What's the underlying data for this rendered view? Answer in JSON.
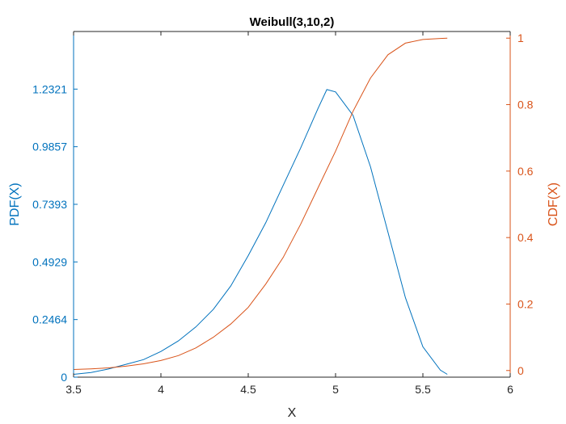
{
  "chart_data": {
    "type": "line",
    "title": "Weibull(3,10,2)",
    "xlabel": "X",
    "ylabel_left": "PDF(X)",
    "ylabel_right": "CDF(X)",
    "xlim": [
      3.5,
      6
    ],
    "ylim_left": [
      0,
      1.4785
    ],
    "ylim_right": [
      -0.02,
      1.02
    ],
    "x_ticks": [
      3.5,
      4,
      4.5,
      5,
      5.5,
      6
    ],
    "x_tick_labels": [
      "3.5",
      "4",
      "4.5",
      "5",
      "5.5",
      "6"
    ],
    "y_left_ticks": [
      0,
      0.2464,
      0.4929,
      0.7393,
      0.9857,
      1.2321
    ],
    "y_left_tick_labels": [
      "0",
      "0.2464",
      "0.4929",
      "0.7393",
      "0.9857",
      "1.2321"
    ],
    "y_right_ticks": [
      0,
      0.2,
      0.4,
      0.6,
      0.8,
      1
    ],
    "y_right_tick_labels": [
      "0",
      "0.2",
      "0.4",
      "0.6",
      "0.8",
      "1"
    ],
    "grid": false,
    "colors": {
      "left": "#0072BD",
      "right": "#D95319",
      "axis": "#262626"
    },
    "series": [
      {
        "axis": "left",
        "x": [
          3.5,
          3.6,
          3.7,
          3.8,
          3.9,
          4.0,
          4.1,
          4.2,
          4.3,
          4.4,
          4.5,
          4.6,
          4.7,
          4.8,
          4.9,
          4.95,
          5.0,
          5.1,
          5.2,
          5.3,
          5.4,
          5.5,
          5.6,
          5.64
        ],
        "y": [
          0.012,
          0.02,
          0.035,
          0.055,
          0.075,
          0.11,
          0.155,
          0.215,
          0.29,
          0.39,
          0.52,
          0.66,
          0.82,
          0.98,
          1.15,
          1.23,
          1.22,
          1.12,
          0.9,
          0.62,
          0.34,
          0.13,
          0.03,
          0.012
        ]
      },
      {
        "axis": "right",
        "x": [
          3.5,
          3.6,
          3.7,
          3.8,
          3.9,
          4.0,
          4.1,
          4.2,
          4.3,
          4.4,
          4.5,
          4.6,
          4.7,
          4.8,
          4.9,
          5.0,
          5.1,
          5.2,
          5.3,
          5.4,
          5.5,
          5.6,
          5.64
        ],
        "y": [
          0.003,
          0.005,
          0.008,
          0.013,
          0.02,
          0.03,
          0.045,
          0.068,
          0.1,
          0.14,
          0.19,
          0.26,
          0.34,
          0.44,
          0.55,
          0.66,
          0.78,
          0.88,
          0.95,
          0.985,
          0.996,
          0.999,
          1.0
        ]
      }
    ]
  }
}
